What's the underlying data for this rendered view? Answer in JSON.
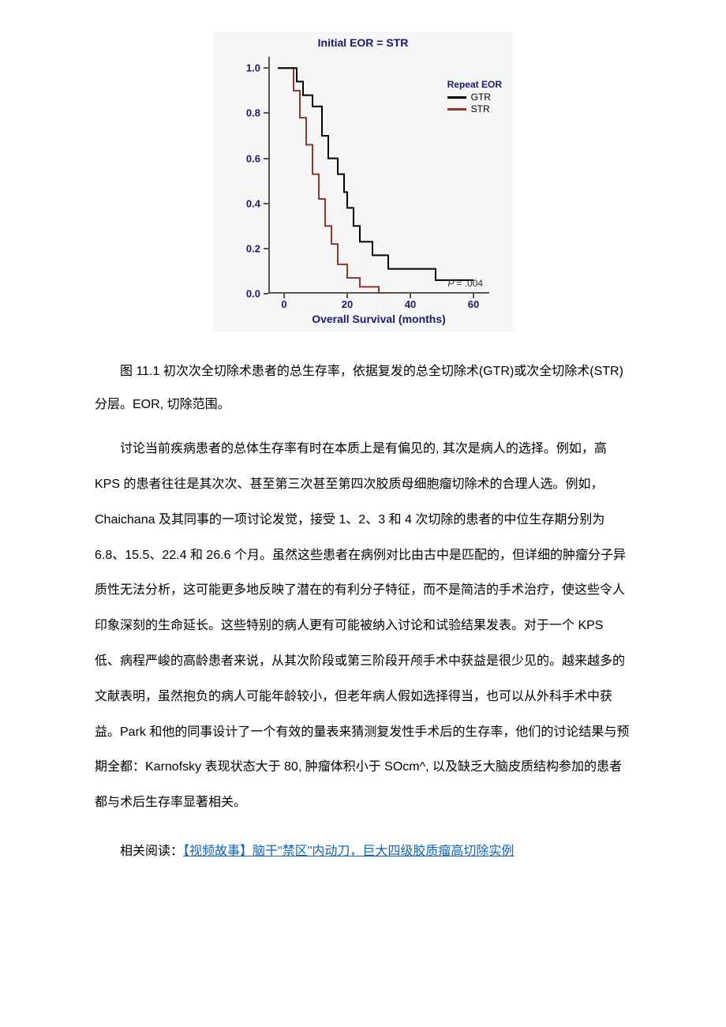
{
  "chart": {
    "type": "kaplan-meier-step",
    "title": "Initial EOR = STR",
    "x_axis_label": "Overall Survival (months)",
    "x_ticks": [
      0,
      20,
      40,
      60
    ],
    "y_ticks": [
      0.0,
      0.2,
      0.4,
      0.6,
      0.8,
      1.0
    ],
    "y_tick_labels": [
      "0.0",
      "0.2",
      "0.4",
      "0.6",
      "0.8",
      "1.0"
    ],
    "xlim": [
      -5,
      65
    ],
    "ylim": [
      0,
      1.05
    ],
    "background_color": "#f5f5f5",
    "axis_color": "#555555",
    "label_color": "#1a1a6e",
    "label_fontsize": 13,
    "title_fontsize": 14,
    "line_width": 2,
    "legend": {
      "title": "Repeat EOR",
      "position": "upper-right",
      "items": [
        {
          "label": "GTR",
          "color": "#000000"
        },
        {
          "label": "STR",
          "color": "#8a3a2a"
        }
      ]
    },
    "p_value_text": "P = .004",
    "series": {
      "GTR": {
        "color": "#000000",
        "points": [
          [
            -2,
            1.0
          ],
          [
            4,
            1.0
          ],
          [
            4,
            0.94
          ],
          [
            6,
            0.94
          ],
          [
            6,
            0.88
          ],
          [
            9,
            0.88
          ],
          [
            9,
            0.83
          ],
          [
            12,
            0.83
          ],
          [
            12,
            0.7
          ],
          [
            14,
            0.7
          ],
          [
            14,
            0.6
          ],
          [
            17,
            0.6
          ],
          [
            17,
            0.53
          ],
          [
            19,
            0.53
          ],
          [
            19,
            0.45
          ],
          [
            20,
            0.45
          ],
          [
            20,
            0.38
          ],
          [
            22,
            0.38
          ],
          [
            22,
            0.3
          ],
          [
            24,
            0.3
          ],
          [
            24,
            0.23
          ],
          [
            28,
            0.23
          ],
          [
            28,
            0.17
          ],
          [
            33,
            0.17
          ],
          [
            33,
            0.11
          ],
          [
            48,
            0.11
          ],
          [
            48,
            0.06
          ],
          [
            60,
            0.06
          ]
        ]
      },
      "STR": {
        "color": "#8a3a2a",
        "points": [
          [
            -2,
            1.0
          ],
          [
            3,
            1.0
          ],
          [
            3,
            0.9
          ],
          [
            5,
            0.9
          ],
          [
            5,
            0.78
          ],
          [
            7,
            0.78
          ],
          [
            7,
            0.66
          ],
          [
            9,
            0.66
          ],
          [
            9,
            0.53
          ],
          [
            11,
            0.53
          ],
          [
            11,
            0.42
          ],
          [
            13,
            0.42
          ],
          [
            13,
            0.3
          ],
          [
            15,
            0.3
          ],
          [
            15,
            0.22
          ],
          [
            17,
            0.22
          ],
          [
            17,
            0.13
          ],
          [
            20,
            0.13
          ],
          [
            20,
            0.07
          ],
          [
            24,
            0.07
          ],
          [
            24,
            0.03
          ],
          [
            30,
            0.03
          ],
          [
            30,
            0.0
          ],
          [
            34,
            0.0
          ]
        ]
      }
    }
  },
  "figure_caption": "图 11.1 初次次全切除术患者的总生存率，依据复发的总全切除术(GTR)或次全切除术(STR)分层。EOR, 切除范围。",
  "paragraph": "讨论当前疾病患者的总体生存率有时在本质上是有偏见的, 其次是病人的选择。例如，高 KPS 的患者往往是其次次、甚至第三次甚至第四次胶质母细胞瘤切除术的合理人选。例如，Chaichana 及其同事的一项讨论发觉，接受 1、2、3 和 4 次切除的患者的中位生存期分别为 6.8、15.5、22.4 和 26.6 个月。虽然这些患者在病例对比由古中是匹配的，但详细的肿瘤分子异质性无法分析，这可能更多地反映了潜在的有利分子特征，而不是简洁的手术治疗，使这些令人印象深刻的生命延长。这些特别的病人更有可能被纳入讨论和试验结果发表。对于一个 KPS 低、病程严峻的高龄患者来说，从其次阶段或第三阶段开颅手术中获益是很少见的。越来越多的文献表明，虽然抱负的病人可能年龄较小，但老年病人假如选择得当，也可以从外科手术中获益。Park 和他的同事设计了一个有效的量表来猜测复发性手术后的生存率，他们的讨论结果与预期全都：Karnofsky 表现状态大于 80, 肿瘤体积小于 SOcm^, 以及缺乏大脑皮质结构参加的患者都与术后生存率显著相关。",
  "related_prefix": "相关阅读：",
  "related_link_text": "【视频故事】脑干\"禁区\"内动刀，巨大四级胶质瘤高切除实例"
}
